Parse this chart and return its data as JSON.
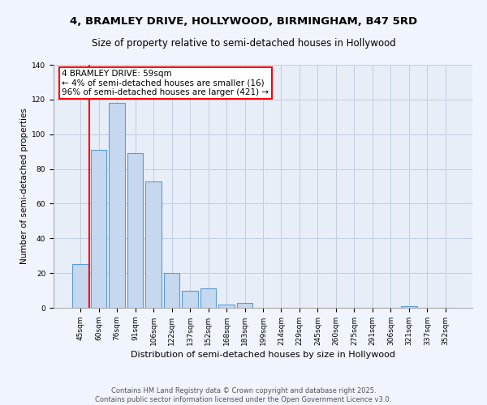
{
  "title1": "4, BRAMLEY DRIVE, HOLLYWOOD, BIRMINGHAM, B47 5RD",
  "title2": "Size of property relative to semi-detached houses in Hollywood",
  "xlabel": "Distribution of semi-detached houses by size in Hollywood",
  "ylabel": "Number of semi-detached properties",
  "annotation_title": "4 BRAMLEY DRIVE: 59sqm",
  "annotation_line2": "← 4% of semi-detached houses are smaller (16)",
  "annotation_line3": "96% of semi-detached houses are larger (421) →",
  "footer": "Contains HM Land Registry data © Crown copyright and database right 2025.\nContains public sector information licensed under the Open Government Licence v3.0.",
  "bin_labels": [
    "45sqm",
    "60sqm",
    "76sqm",
    "91sqm",
    "106sqm",
    "122sqm",
    "137sqm",
    "152sqm",
    "168sqm",
    "183sqm",
    "199sqm",
    "214sqm",
    "229sqm",
    "245sqm",
    "260sqm",
    "275sqm",
    "291sqm",
    "306sqm",
    "321sqm",
    "337sqm",
    "352sqm"
  ],
  "bin_values": [
    25,
    91,
    118,
    89,
    73,
    20,
    10,
    11,
    2,
    3,
    0,
    0,
    0,
    0,
    0,
    0,
    0,
    0,
    1,
    0,
    0
  ],
  "bar_color": "#c5d8f0",
  "bar_edge_color": "#5b9bd5",
  "ylim": [
    0,
    140
  ],
  "yticks": [
    0,
    20,
    40,
    60,
    80,
    100,
    120,
    140
  ],
  "fig_bg_color": "#f0f4fc",
  "plot_bg_color": "#e8eef8",
  "grid_color": "#c0cce0",
  "redline_color": "red",
  "title1_fontsize": 9.5,
  "title2_fontsize": 8.5,
  "tick_fontsize": 6.5,
  "ylabel_fontsize": 7.5,
  "xlabel_fontsize": 8,
  "annotation_fontsize": 7.5,
  "footer_fontsize": 6
}
